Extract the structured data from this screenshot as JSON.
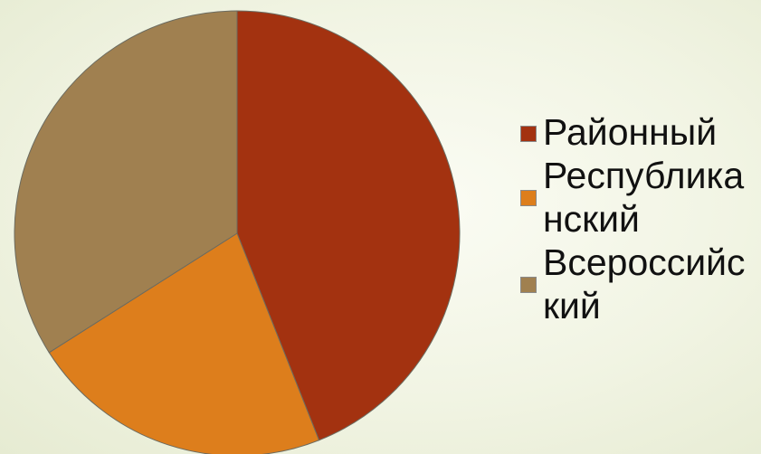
{
  "chart_data": {
    "type": "pie",
    "title": "",
    "categories": [
      "Районный",
      "Республиканский",
      "Всероссийский"
    ],
    "values": [
      44,
      22,
      34
    ],
    "colors": [
      "#a33210",
      "#dd7e1c",
      "#a08050"
    ],
    "legend_placement": "right"
  }
}
